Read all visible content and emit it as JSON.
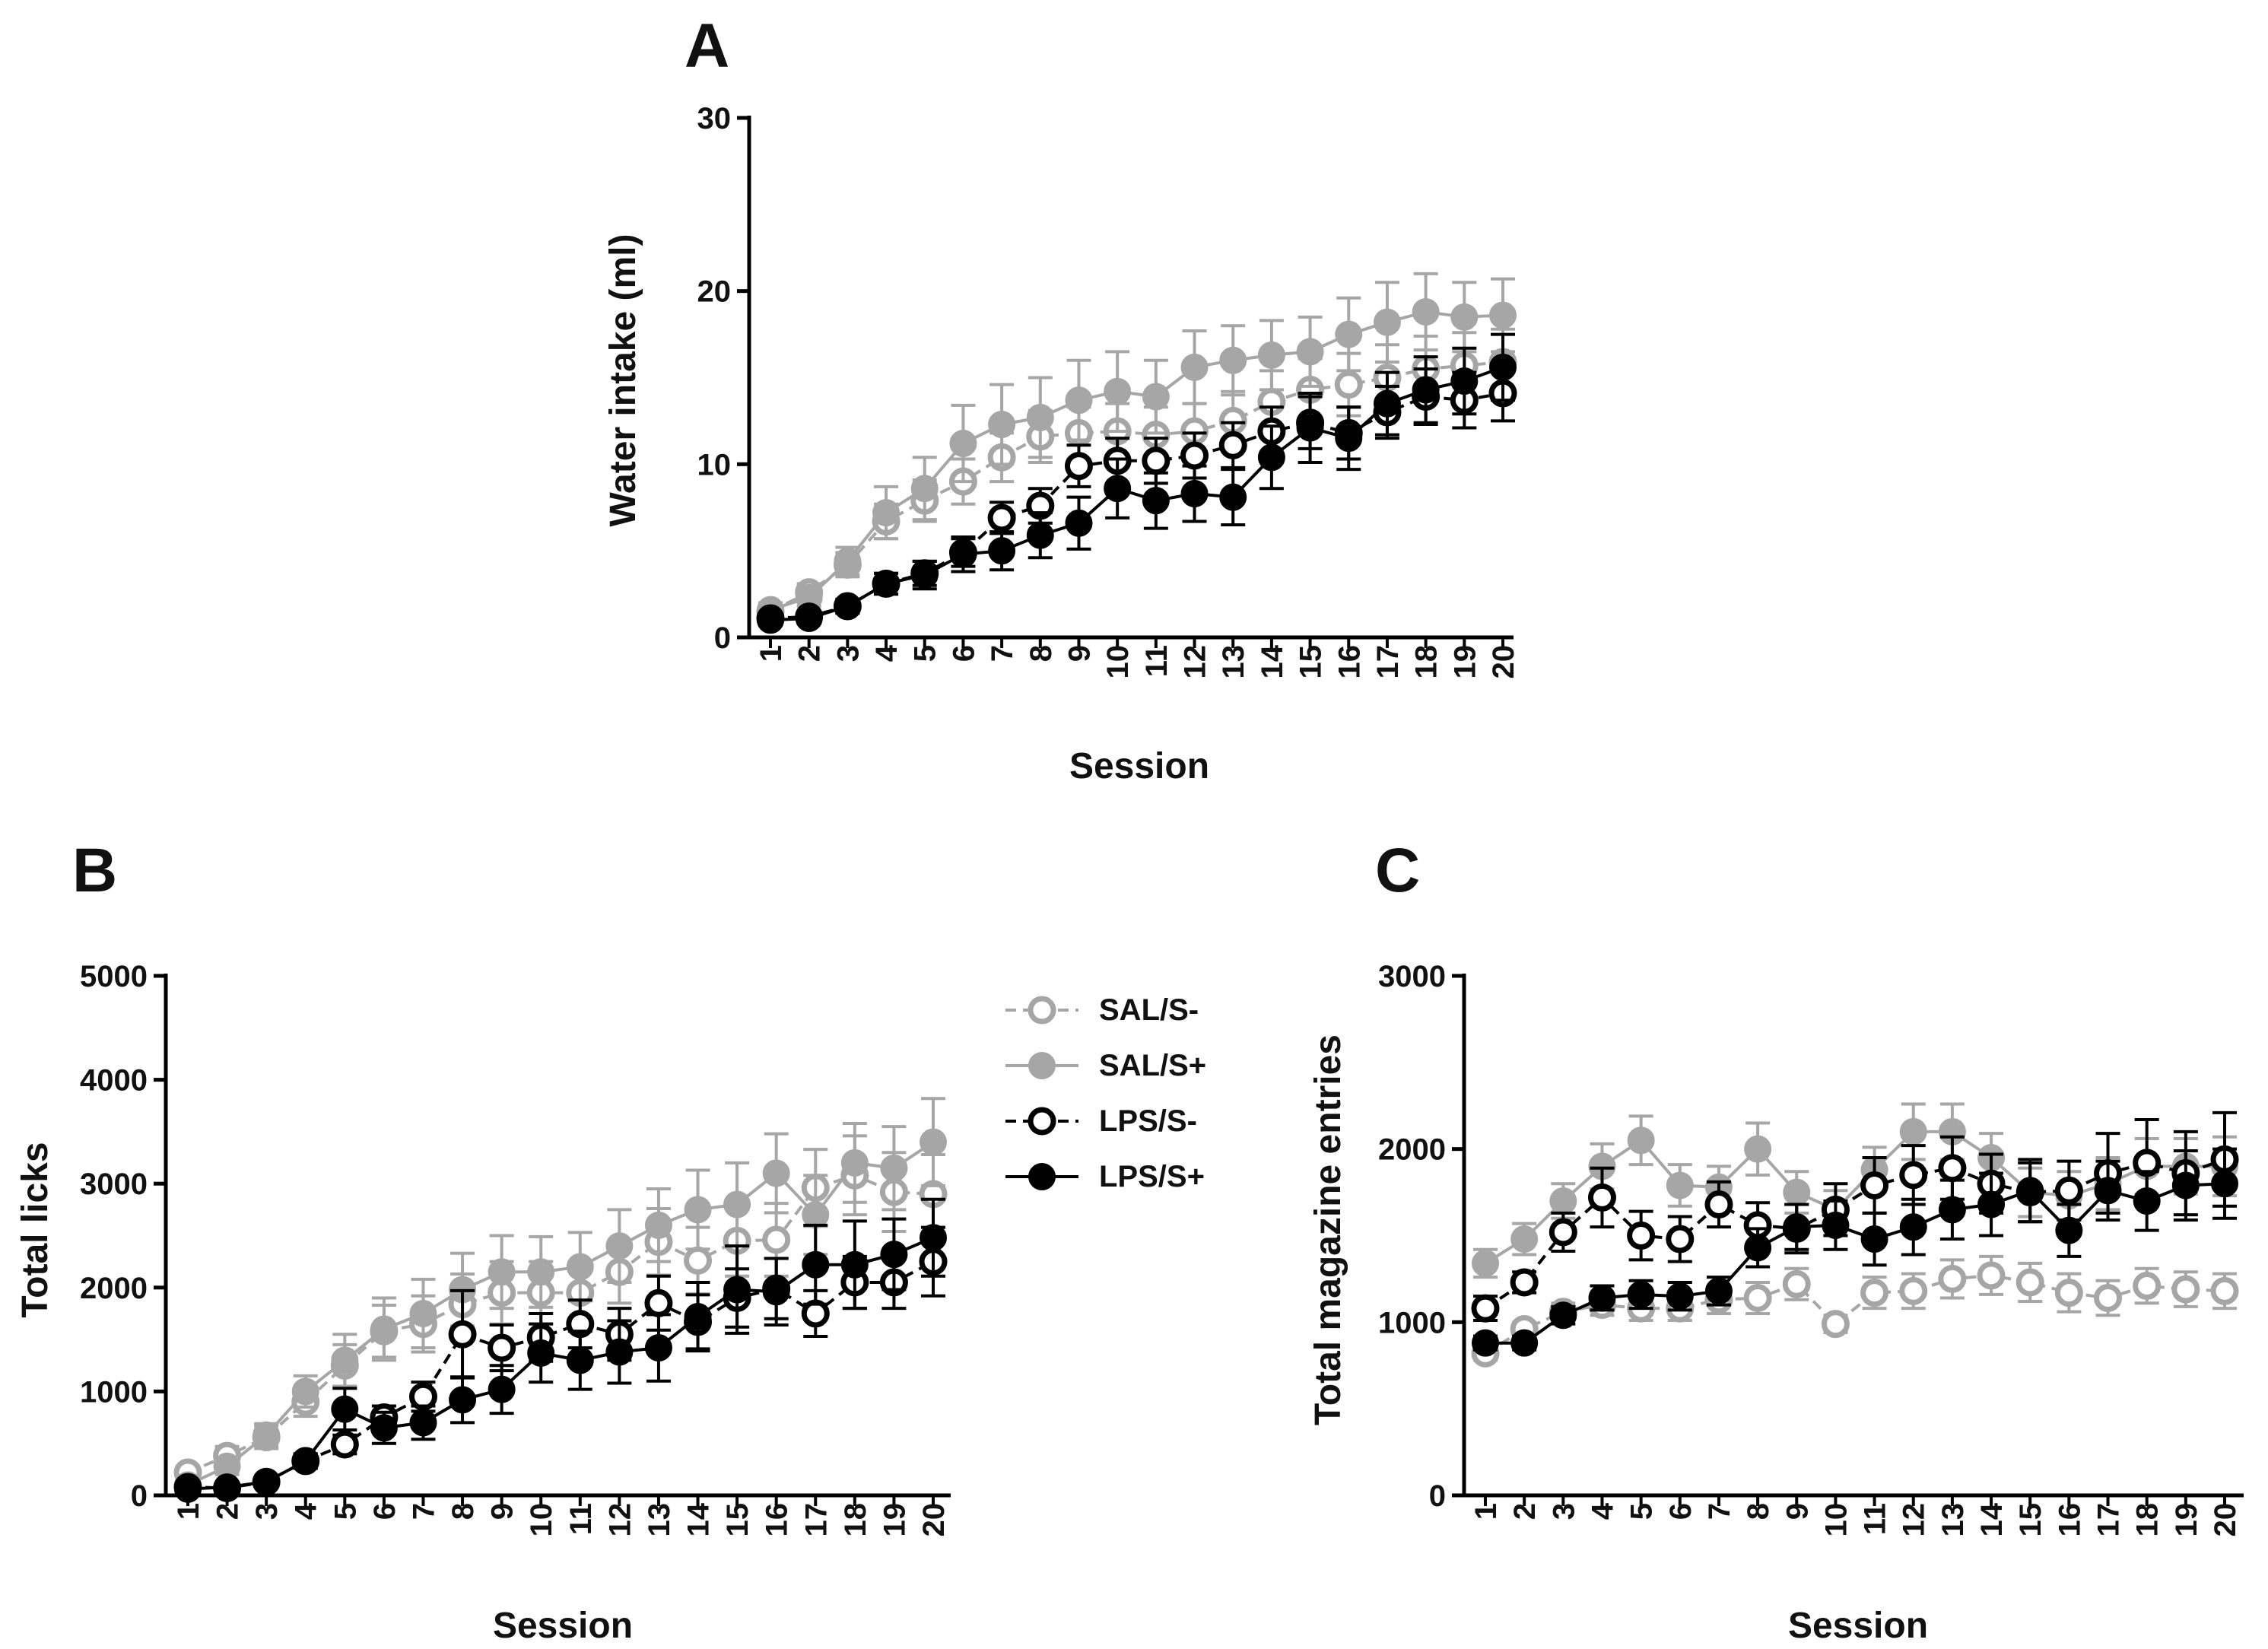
{
  "colors": {
    "sal": "#a6a6a6",
    "lps": "#000000"
  },
  "legend": [
    {
      "label": "SAL/S-",
      "color": "#a6a6a6",
      "filled": false,
      "dashed": true
    },
    {
      "label": "SAL/S+",
      "color": "#a6a6a6",
      "filled": true,
      "dashed": false
    },
    {
      "label": "LPS/S-",
      "color": "#000000",
      "filled": false,
      "dashed": true
    },
    {
      "label": "LPS/S+",
      "color": "#000000",
      "filled": true,
      "dashed": false
    }
  ],
  "chart_data": [
    {
      "panel": "A",
      "type": "line",
      "xlabel": "Session",
      "ylabel": "Water intake (ml)",
      "ylim": [
        0,
        30
      ],
      "yticks": [
        0,
        10,
        20,
        30
      ],
      "categories": [
        "1",
        "2",
        "3",
        "4",
        "5",
        "6",
        "7",
        "8",
        "9",
        "10",
        "11",
        "12",
        "13",
        "14",
        "15",
        "16",
        "17",
        "18",
        "19",
        "20"
      ],
      "series": [
        {
          "name": "SAL/S-",
          "values": [
            1.5,
            2.6,
            4.2,
            6.7,
            7.9,
            9.0,
            10.4,
            11.6,
            11.8,
            11.9,
            11.7,
            11.9,
            12.5,
            13.6,
            14.3,
            14.6,
            15.0,
            15.5,
            15.7,
            15.9
          ],
          "errors": [
            0.4,
            0.5,
            0.7,
            1.0,
            1.2,
            1.3,
            1.4,
            1.5,
            1.5,
            1.6,
            1.6,
            1.6,
            1.7,
            1.8,
            1.8,
            1.8,
            1.9,
            1.9,
            1.9,
            1.9
          ]
        },
        {
          "name": "SAL/S+",
          "values": [
            1.6,
            2.3,
            4.4,
            7.2,
            8.6,
            11.2,
            12.3,
            12.7,
            13.7,
            14.2,
            13.9,
            15.6,
            16.0,
            16.3,
            16.5,
            17.5,
            18.2,
            18.8,
            18.5,
            18.6
          ],
          "errors": [
            0.4,
            0.5,
            0.8,
            1.5,
            1.8,
            2.2,
            2.3,
            2.3,
            2.3,
            2.3,
            2.1,
            2.1,
            2.0,
            2.0,
            2.0,
            2.1,
            2.3,
            2.2,
            2.0,
            2.1
          ]
        },
        {
          "name": "LPS/S-",
          "values": [
            1.1,
            1.2,
            1.8,
            3.1,
            3.7,
            4.9,
            6.9,
            7.6,
            9.9,
            10.2,
            10.2,
            10.5,
            11.1,
            11.9,
            12.4,
            11.8,
            13.0,
            13.9,
            13.7,
            14.1
          ],
          "errors": [
            0.3,
            0.3,
            0.4,
            0.6,
            0.7,
            0.8,
            0.9,
            1.0,
            1.2,
            1.3,
            1.3,
            1.3,
            1.3,
            1.4,
            1.5,
            1.5,
            1.5,
            1.6,
            1.6,
            1.6
          ]
        },
        {
          "name": "LPS/S+",
          "values": [
            1.0,
            1.1,
            1.8,
            3.1,
            3.6,
            4.8,
            5.0,
            5.9,
            6.6,
            8.6,
            7.9,
            8.3,
            8.1,
            10.4,
            12.1,
            11.5,
            13.5,
            14.3,
            14.8,
            15.6
          ],
          "errors": [
            0.3,
            0.3,
            0.4,
            0.6,
            0.8,
            1.0,
            1.1,
            1.3,
            1.5,
            1.7,
            1.6,
            1.6,
            1.6,
            1.8,
            2.0,
            1.8,
            1.8,
            1.9,
            1.9,
            1.9
          ]
        }
      ]
    },
    {
      "panel": "B",
      "type": "line",
      "xlabel": "Session",
      "ylabel": "Total licks",
      "ylim": [
        0,
        5000
      ],
      "yticks": [
        0,
        1000,
        2000,
        3000,
        4000,
        5000
      ],
      "categories": [
        "1",
        "2",
        "3",
        "4",
        "5",
        "6",
        "7",
        "8",
        "9",
        "10",
        "11",
        "12",
        "13",
        "14",
        "15",
        "16",
        "17",
        "18",
        "19",
        "20"
      ],
      "series": [
        {
          "name": "SAL/S-",
          "values": [
            220,
            380,
            560,
            900,
            1250,
            1580,
            1650,
            1840,
            1950,
            1950,
            1950,
            2150,
            2440,
            2260,
            2450,
            2460,
            2960,
            3080,
            2920,
            2900
          ],
          "errors": [
            60,
            90,
            110,
            140,
            200,
            250,
            270,
            290,
            300,
            300,
            290,
            300,
            320,
            320,
            340,
            350,
            370,
            380,
            380,
            380
          ]
        },
        {
          "name": "SAL/S+",
          "values": [
            100,
            280,
            580,
            1000,
            1300,
            1600,
            1750,
            1980,
            2150,
            2150,
            2200,
            2400,
            2600,
            2750,
            2800,
            3100,
            2700,
            3200,
            3150,
            3400
          ],
          "errors": [
            50,
            80,
            110,
            150,
            250,
            300,
            330,
            350,
            350,
            340,
            330,
            350,
            350,
            380,
            400,
            380,
            380,
            380,
            400,
            420
          ]
        },
        {
          "name": "LPS/S-",
          "values": [
            80,
            70,
            130,
            330,
            490,
            750,
            950,
            1550,
            1420,
            1520,
            1650,
            1550,
            1850,
            1670,
            1900,
            1990,
            1750,
            2050,
            2050,
            2250
          ],
          "errors": [
            30,
            30,
            40,
            70,
            90,
            110,
            140,
            420,
            220,
            230,
            230,
            250,
            260,
            260,
            280,
            290,
            220,
            250,
            250,
            330
          ]
        },
        {
          "name": "LPS/S+",
          "values": [
            60,
            80,
            130,
            330,
            830,
            650,
            700,
            920,
            1020,
            1370,
            1300,
            1380,
            1420,
            1720,
            1980,
            1960,
            2220,
            2220,
            2320,
            2480
          ],
          "errors": [
            30,
            30,
            40,
            70,
            200,
            150,
            160,
            220,
            230,
            280,
            280,
            300,
            320,
            330,
            420,
            320,
            380,
            420,
            340,
            370
          ]
        }
      ]
    },
    {
      "panel": "C",
      "type": "line",
      "xlabel": "Session",
      "ylabel": "Total magazine entries",
      "ylim": [
        0,
        3000
      ],
      "yticks": [
        0,
        1000,
        2000,
        3000
      ],
      "categories": [
        "1",
        "2",
        "3",
        "4",
        "5",
        "6",
        "7",
        "8",
        "9",
        "10",
        "11",
        "12",
        "13",
        "14",
        "15",
        "16",
        "17",
        "18",
        "19",
        "20"
      ],
      "series": [
        {
          "name": "SAL/S-",
          "values": [
            820,
            960,
            1060,
            1100,
            1080,
            1080,
            1130,
            1140,
            1220,
            990,
            1170,
            1180,
            1250,
            1270,
            1230,
            1170,
            1140,
            1210,
            1190,
            1180
          ],
          "errors": [
            40,
            40,
            50,
            60,
            70,
            70,
            80,
            90,
            90,
            50,
            90,
            100,
            110,
            110,
            110,
            110,
            100,
            100,
            100,
            100
          ]
        },
        {
          "name": "SAL/S+",
          "values": [
            1340,
            1480,
            1700,
            1900,
            2050,
            1790,
            1780,
            2000,
            1750,
            1650,
            1880,
            2100,
            2100,
            1950,
            1750,
            1730,
            1800,
            1900,
            1900,
            1900
          ],
          "errors": [
            80,
            90,
            100,
            130,
            140,
            120,
            120,
            150,
            120,
            110,
            130,
            160,
            160,
            140,
            140,
            140,
            150,
            160,
            160,
            170
          ]
        },
        {
          "name": "LPS/S-",
          "values": [
            1080,
            1230,
            1520,
            1720,
            1500,
            1480,
            1680,
            1560,
            1540,
            1650,
            1790,
            1850,
            1890,
            1800,
            1750,
            1760,
            1860,
            1920,
            1860,
            1940
          ],
          "errors": [
            70,
            60,
            110,
            170,
            140,
            130,
            130,
            130,
            140,
            150,
            160,
            170,
            180,
            170,
            170,
            170,
            230,
            250,
            240,
            270
          ]
        },
        {
          "name": "LPS/S+",
          "values": [
            880,
            880,
            1040,
            1140,
            1160,
            1150,
            1180,
            1430,
            1550,
            1560,
            1480,
            1550,
            1650,
            1680,
            1760,
            1530,
            1760,
            1700,
            1790,
            1800
          ],
          "errors": [
            40,
            40,
            50,
            70,
            80,
            80,
            80,
            110,
            130,
            140,
            150,
            160,
            170,
            180,
            180,
            150,
            170,
            170,
            200,
            200
          ]
        }
      ]
    }
  ]
}
